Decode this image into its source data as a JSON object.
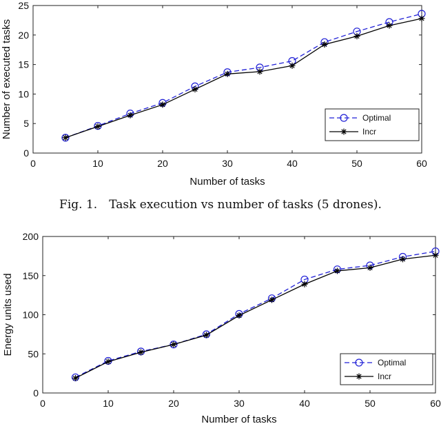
{
  "chart_data": [
    {
      "type": "line",
      "title": "",
      "xlabel": "Number of tasks",
      "ylabel": "Number of executed tasks",
      "xlim": [
        0,
        60
      ],
      "ylim": [
        0,
        25
      ],
      "xticks": [
        0,
        10,
        20,
        30,
        40,
        50,
        60
      ],
      "yticks": [
        0,
        5,
        10,
        15,
        20,
        25
      ],
      "grid": false,
      "legend_position": "bottom-right",
      "x": [
        5,
        10,
        15,
        20,
        25,
        30,
        35,
        40,
        45,
        50,
        55,
        60
      ],
      "series": [
        {
          "name": "Optimal",
          "color": "#1f1fd6",
          "line_style": "dashed",
          "marker": "circle",
          "values": [
            2.6,
            4.6,
            6.7,
            8.5,
            11.3,
            13.7,
            14.5,
            15.6,
            18.8,
            20.6,
            22.2,
            23.6
          ]
        },
        {
          "name": "Incr",
          "color": "#000000",
          "line_style": "solid",
          "marker": "star",
          "values": [
            2.6,
            4.5,
            6.4,
            8.2,
            10.8,
            13.4,
            13.8,
            14.8,
            18.4,
            19.8,
            21.6,
            22.8
          ]
        }
      ],
      "caption": "Fig. 1. Task execution vs number of tasks (5 drones)."
    },
    {
      "type": "line",
      "title": "",
      "xlabel": "Number of tasks",
      "ylabel": "Energy units used",
      "xlim": [
        0,
        60
      ],
      "ylim": [
        0,
        200
      ],
      "xticks": [
        0,
        10,
        20,
        30,
        40,
        50,
        60
      ],
      "yticks": [
        0,
        50,
        100,
        150,
        200
      ],
      "grid": false,
      "legend_position": "bottom-right",
      "x": [
        5,
        10,
        15,
        20,
        25,
        30,
        35,
        40,
        45,
        50,
        55,
        60
      ],
      "series": [
        {
          "name": "Optimal",
          "color": "#1f1fd6",
          "line_style": "dashed",
          "marker": "circle",
          "values": [
            20,
            41,
            53,
            62,
            75,
            101,
            121,
            145,
            158,
            163,
            174,
            181
          ]
        },
        {
          "name": "Incr",
          "color": "#000000",
          "line_style": "solid",
          "marker": "star",
          "values": [
            19,
            40,
            52,
            62,
            74,
            99,
            119,
            139,
            156,
            160,
            171,
            176
          ]
        }
      ]
    }
  ]
}
